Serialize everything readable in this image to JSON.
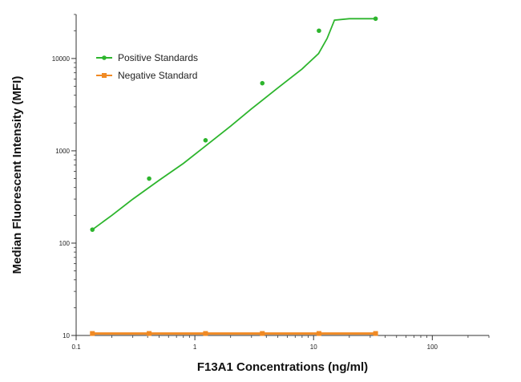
{
  "chart_data": {
    "type": "scatter",
    "title": "",
    "xlabel": "F13A1 Concentrations (ng/ml)",
    "ylabel": "Median  Fluorescent Intensity  (MFI)",
    "xscale": "log",
    "yscale": "log",
    "xlim": [
      0.1,
      300
    ],
    "ylim": [
      10,
      30000
    ],
    "x_ticks": [
      0.1,
      1,
      10,
      100
    ],
    "x_tick_labels": [
      "0.1",
      "1",
      "10",
      "100"
    ],
    "y_ticks": [
      10,
      100,
      1000,
      10000
    ],
    "y_tick_labels": [
      "10",
      "100",
      "1000",
      "10000"
    ],
    "grid": false,
    "legend_position": "top-left",
    "series": [
      {
        "name": "Positive Standards",
        "color": "#2db52d",
        "marker": "circle",
        "x": [
          0.137,
          0.412,
          1.23,
          3.7,
          11.1,
          33.3
        ],
        "y": [
          140,
          500,
          1300,
          5400,
          20000,
          27000
        ],
        "fit_curve": {
          "x": [
            0.137,
            0.2,
            0.3,
            0.5,
            0.8,
            1.2,
            2,
            3,
            5,
            8,
            11,
            13,
            15,
            20,
            33.3
          ],
          "y": [
            140,
            200,
            300,
            480,
            730,
            1100,
            1850,
            2850,
            4800,
            7700,
            11300,
            16500,
            26000,
            27000,
            27000
          ]
        }
      },
      {
        "name": "Negative Standard",
        "color": "#f08a24",
        "marker": "square",
        "x": [
          0.137,
          0.412,
          1.23,
          3.7,
          11.1,
          33.3
        ],
        "y": [
          10.5,
          10.5,
          10.5,
          10.5,
          10.5,
          10.5
        ]
      }
    ]
  }
}
